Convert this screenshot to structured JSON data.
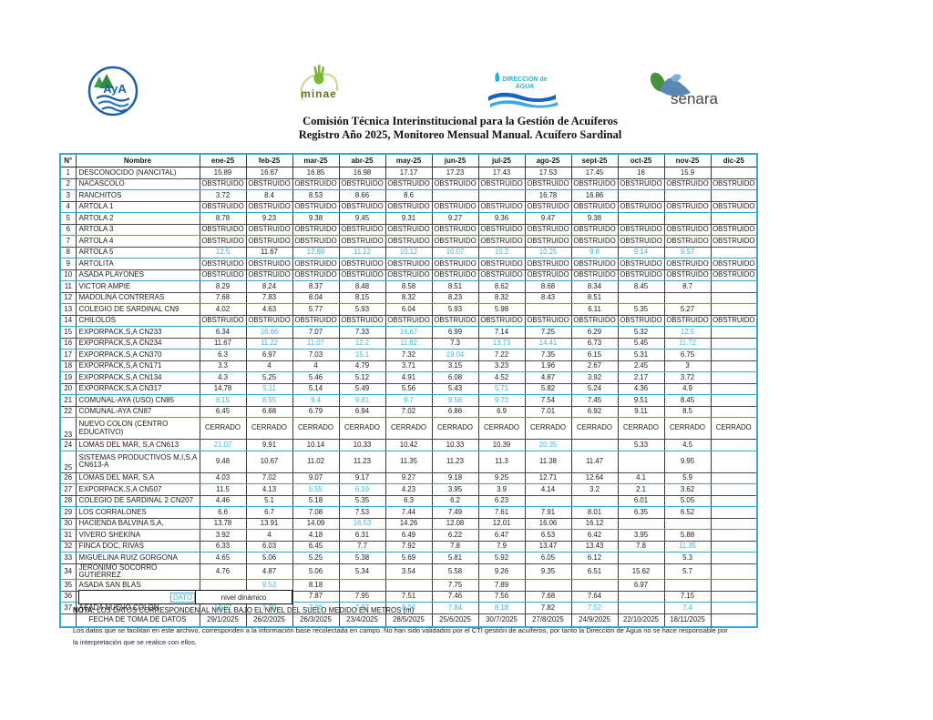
{
  "header": {
    "logos": {
      "aya_label": "AyA",
      "minae_label": "minae",
      "da_line1": "DIRECCIÓN de",
      "da_line2": "AGUA",
      "senara_label": "senara"
    },
    "title_line1": "Comisión Técnica Interinstitucional para la Gestión de Acuíferos",
    "title_line2": "Registro Año 2025, Monitoreo Mensual Manual. Acuífero Sardinal"
  },
  "table": {
    "columns": [
      "N°",
      "Nombre",
      "ene-25",
      "feb-25",
      "mar-25",
      "abr-25",
      "may-25",
      "jun-25",
      "jul-25",
      "ago-25",
      "sept-25",
      "oct-25",
      "nov-25",
      "dic-25"
    ],
    "rows": [
      {
        "n": "1",
        "name": "DESCONOCIDO (NANCITAL)",
        "values": [
          "15.89",
          "16.67",
          "16.85",
          "16.98",
          "17.17",
          "17.23",
          "17.43",
          "17.53",
          "17.45",
          "16",
          "15.9",
          ""
        ]
      },
      {
        "n": "2",
        "name": "NACASCOLO",
        "values": [
          "OBSTRUIDO",
          "OBSTRUIDO",
          "OBSTRUIDO",
          "OBSTRUIDO",
          "OBSTRUIDO",
          "OBSTRUIDO",
          "OBSTRUIDO",
          "OBSTRUIDO",
          "OBSTRUIDO",
          "OBSTRUIDO",
          "OBSTRUIDO",
          "OBSTRUIDO"
        ]
      },
      {
        "n": "3",
        "name": "RANCHITOS",
        "values": [
          "3.72",
          "8.4",
          "8.53",
          "8.66",
          "8.6",
          "",
          "",
          "16.78",
          "16.86",
          "",
          "",
          ""
        ]
      },
      {
        "n": "4",
        "name": "ARTOLA 1",
        "values": [
          "OBSTRUIDO",
          "OBSTRUIDO",
          "OBSTRUIDO",
          "OBSTRUIDO",
          "OBSTRUIDO",
          "OBSTRUIDO",
          "OBSTRUIDO",
          "OBSTRUIDO",
          "OBSTRUIDO",
          "OBSTRUIDO",
          "OBSTRUIDO",
          "OBSTRUIDO"
        ]
      },
      {
        "n": "5",
        "name": "ARTOLA 2",
        "values": [
          "8.78",
          "9.23",
          "9.38",
          "9.45",
          "9.31",
          "9.27",
          "9.36",
          "9.47",
          "9.38",
          "",
          "",
          ""
        ]
      },
      {
        "n": "6",
        "name": "ARTOLA 3",
        "values": [
          "OBSTRUIDO",
          "OBSTRUIDO",
          "OBSTRUIDO",
          "OBSTRUIDO",
          "OBSTRUIDO",
          "OBSTRUIDO",
          "OBSTRUIDO",
          "OBSTRUIDO",
          "OBSTRUIDO",
          "OBSTRUIDO",
          "OBSTRUIDO",
          "OBSTRUIDO"
        ]
      },
      {
        "n": "7",
        "name": "ARTOLA 4",
        "values": [
          "OBSTRUIDO",
          "OBSTRUIDO",
          "OBSTRUIDO",
          "OBSTRUIDO",
          "OBSTRUIDO",
          "OBSTRUIDO",
          "OBSTRUIDO",
          "OBSTRUIDO",
          "OBSTRUIDO",
          "OBSTRUIDO",
          "OBSTRUIDO",
          "OBSTRUIDO"
        ]
      },
      {
        "n": "8",
        "name": "ARTOLA 5",
        "values": [
          "~12.5",
          "11.67",
          "~12.88",
          "~11.12",
          "~10.12",
          "~10.07",
          "~10.2",
          "~10.25",
          "~9.8",
          "~9.14",
          "~9.57",
          ""
        ]
      },
      {
        "n": "9",
        "name": "ARTOLITA",
        "values": [
          "OBSTRUIDO",
          "OBSTRUIDO",
          "OBSTRUIDO",
          "OBSTRUIDO",
          "OBSTRUIDO",
          "OBSTRUIDO",
          "OBSTRUIDO",
          "OBSTRUIDO",
          "OBSTRUIDO",
          "OBSTRUIDO",
          "OBSTRUIDO",
          "OBSTRUIDO"
        ]
      },
      {
        "n": "10",
        "name": "ASADA PLAYONES",
        "values": [
          "OBSTRUIDO",
          "OBSTRUIDO",
          "OBSTRUIDO",
          "OBSTRUIDO",
          "OBSTRUIDO",
          "OBSTRUIDO",
          "OBSTRUIDO",
          "OBSTRUIDO",
          "OBSTRUIDO",
          "OBSTRUIDO",
          "OBSTRUIDO",
          "OBSTRUIDO"
        ]
      },
      {
        "n": "11",
        "name": "VICTOR AMPIE",
        "values": [
          "8.29",
          "8.24",
          "8.37",
          "8.48",
          "8.58",
          "8.51",
          "8.62",
          "8.68",
          "8.34",
          "8.45",
          "8.7",
          ""
        ]
      },
      {
        "n": "12",
        "name": "MADOLINA CONTRERAS",
        "values": [
          "7.68",
          "7.83",
          "8.04",
          "8.15",
          "8.32",
          "8.23",
          "8.32",
          "8.43",
          "8.51",
          "",
          "",
          ""
        ]
      },
      {
        "n": "13",
        "name": "COLEGIO DE SARDINAL CN9",
        "values": [
          "4.02",
          "4.63",
          "5.77",
          "5.93",
          "6.04",
          "5.93",
          "5.98",
          "",
          "6.11",
          "5.35",
          "5.27",
          ""
        ]
      },
      {
        "n": "14",
        "name": "CHILOLOS",
        "values": [
          "OBSTRUIDO",
          "OBSTRUIDO",
          "OBSTRUIDO",
          "OBSTRUIDO",
          "OBSTRUIDO",
          "OBSTRUIDO",
          "OBSTRUIDO",
          "OBSTRUIDO",
          "OBSTRUIDO",
          "OBSTRUIDO",
          "OBSTRUIDO",
          "OBSTRUIDO"
        ]
      },
      {
        "n": "15",
        "name": "EXPORPACK,S,A CN233",
        "values": [
          "6.34",
          "~16.66",
          "7.07",
          "7.33",
          "~16.67",
          "6.99",
          "7.14",
          "7.25",
          "6.29",
          "5.32",
          "~12.5",
          ""
        ]
      },
      {
        "n": "16",
        "name": "EXPORPACK,S,A CN234",
        "values": [
          "11.67",
          "~11.22",
          "~11.07",
          "~12.2",
          "~11.82",
          "7.3",
          "~13.73",
          "~14.41",
          "6.73",
          "5.45",
          "~11.72",
          ""
        ]
      },
      {
        "n": "17",
        "name": "EXPORPACK,S,A CN370",
        "values": [
          "6.3",
          "6.97",
          "7.03",
          "~15.1",
          "7.32",
          "~19.04",
          "7.22",
          "7.35",
          "6.15",
          "5.31",
          "6.75",
          ""
        ]
      },
      {
        "n": "18",
        "name": "EXPORPACK,S,A CN171",
        "values": [
          "3.3",
          "4",
          "4",
          "4.79",
          "3.71",
          "3.15",
          "3.23",
          "1.96",
          "2.67",
          "2.45",
          "3",
          ""
        ]
      },
      {
        "n": "19",
        "name": "EXPORPACK,S,A CN134",
        "values": [
          "4.3",
          "5.25",
          "5.46",
          "5.12",
          "4.91",
          "6.08",
          "4.52",
          "4.87",
          "3.92",
          "2.17",
          "3.72",
          ""
        ]
      },
      {
        "n": "20",
        "name": "EXPORPACK,S,A CN317",
        "values": [
          "14.78",
          "~5.11",
          "5.14",
          "5.49",
          "5.56",
          "5.43",
          "~5.71",
          "5.82",
          "5.24",
          "4.36",
          "4.9",
          ""
        ]
      },
      {
        "n": "21",
        "name": "COMUNAL-AYA (USO) CN85",
        "values": [
          "~8.15",
          "~8.55",
          "~9.4",
          "~9.81",
          "~9.7",
          "~9.56",
          "~9.73",
          "7.54",
          "7.45",
          "9.51",
          "8.45",
          ""
        ]
      },
      {
        "n": "22",
        "name": "COMUNAL-AYA CN87",
        "values": [
          "6.45",
          "6.68",
          "6.79",
          "6.94",
          "7.02",
          "6.86",
          "6.9",
          "7.01",
          "6.92",
          "9.11",
          "8.5",
          ""
        ]
      },
      {
        "n": "23",
        "name": "NUEVO COLON (CENTRO\nEDUCATIVO)",
        "tall": true,
        "values": [
          "CERRADO",
          "CERRADO",
          "CERRADO",
          "CERRADO",
          "CERRADO",
          "CERRADO",
          "CERRADO",
          "CERRADO",
          "CERRADO",
          "CERRADO",
          "CERRADO",
          "CERRADO"
        ]
      },
      {
        "n": "24",
        "name": "LOMAS DEL MAR, S,A CN613",
        "values": [
          "~21.07",
          "9.91",
          "10.14",
          "10.33",
          "10.42",
          "10.33",
          "10.39",
          "~20.35",
          "",
          "5.33",
          "4.5",
          ""
        ]
      },
      {
        "n": "25",
        "name": "SISTEMAS PRODUCTIVOS M,I,S,A\nCN613-A",
        "tall": true,
        "values": [
          "9.48",
          "10.67",
          "11.02",
          "11.23",
          "11.35",
          "11.23",
          "11.3",
          "11.38",
          "11.47",
          "",
          "9.95",
          ""
        ]
      },
      {
        "n": "26",
        "name": "LOMAS DEL MAR, S,A",
        "values": [
          "4.03",
          "7.02",
          "9.07",
          "9.17",
          "9.27",
          "9.18",
          "9.25",
          "12.71",
          "12.64",
          "4.1",
          "5.9",
          ""
        ]
      },
      {
        "n": "27",
        "name": "EXPORPACK,S,A CN507",
        "values": [
          "11.5",
          "4.13",
          "~5.55",
          "~6.19",
          "4.23",
          "3.95",
          "3.9",
          "4.14",
          "3.2",
          "2.1",
          "3.62",
          ""
        ]
      },
      {
        "n": "28",
        "name": "COLEGIO DE SARDINAL 2 CN207",
        "values": [
          "4.46",
          "5.1",
          "5.18",
          "5.35",
          "6.3",
          "6.2",
          "6.23",
          "",
          "",
          "6.01",
          "5.05",
          ""
        ]
      },
      {
        "n": "29",
        "name": "LOS CORRALONES",
        "values": [
          "6.6",
          "6.7",
          "7.08",
          "7.53",
          "7.44",
          "7.49",
          "7.61",
          "7.91",
          "8.01",
          "6.35",
          "6.52",
          ""
        ]
      },
      {
        "n": "30",
        "name": "HACIENDA BALVINA S,A,",
        "values": [
          "13.78",
          "13.91",
          "14.09",
          "~16.53",
          "14.26",
          "12.08",
          "12.01",
          "16.06",
          "16.12",
          "",
          "",
          ""
        ]
      },
      {
        "n": "31",
        "name": "VIVERO SHEKÍNA",
        "values": [
          "3.92",
          "4",
          "4.18",
          "6.31",
          "6.49",
          "6.22",
          "6.47",
          "6.53",
          "6.42",
          "3.95",
          "5.88",
          ""
        ]
      },
      {
        "n": "32",
        "name": "FINCA DOC, RIVAS",
        "values": [
          "6.33",
          "6.03",
          "6.45",
          "7.7",
          "7.92",
          "7.8",
          "7.9",
          "13.47",
          "13.43",
          "7.8",
          "~11.35",
          ""
        ]
      },
      {
        "n": "33",
        "name": "MIGUELINA RUIZ GORGONA",
        "values": [
          "4.65",
          "5.06",
          "5.25",
          "5.38",
          "5.69",
          "5.81",
          "5.92",
          "6.05",
          "6.12",
          "",
          "5.3",
          ""
        ]
      },
      {
        "n": "34",
        "name": "JERÓNIMO SOCORRO GUTIÉRREZ",
        "values": [
          "4.76",
          "4.87",
          "5.06",
          "5.34",
          "3.54",
          "5.58",
          "9.26",
          "9.35",
          "6.51",
          "15.62",
          "5.7",
          ""
        ]
      },
      {
        "n": "35",
        "name": "ASADA SAN BLAS",
        "values": [
          "",
          "~9.53",
          "8.18",
          "",
          "",
          "7.75",
          "7.89",
          "",
          "",
          "6.97",
          "",
          ""
        ]
      },
      {
        "n": "36",
        "name": "SAN BLAS-PABLO GUTIÉRREZ",
        "values": [
          "6.49",
          "6.58",
          "7.87",
          "7.95",
          "7.51",
          "7.46",
          "7.56",
          "7.68",
          "7.64",
          "",
          "7.15",
          ""
        ]
      },
      {
        "n": "37",
        "name": "ASADA NUEVO COLON",
        "values": [
          "~18.02",
          "~7.39",
          "~7.38",
          "~7.87",
          "~8.04",
          "~7.84",
          "~8.18",
          "7.82",
          "~7.52",
          "",
          "~7.4",
          ""
        ]
      }
    ],
    "footer_label": "FECHA DE TOMA DE DATOS",
    "footer_dates": [
      "29/1/2025",
      "26/2/2025",
      "26/3/2025",
      "23/4/2025",
      "28/5/2025",
      "25/6/2025",
      "30/7/2025",
      "27/8/2025",
      "24/9/2025",
      "22/10/2025",
      "18/11/2025",
      ""
    ]
  },
  "legend": {
    "dato": "DATO",
    "meaning": "nivel dinámico"
  },
  "nota_label": "NOTA:",
  "nota_text": " LOS DATOS CORRESPONDEN AL NIVEL BAJO EL NIVEL DEL SUELO MEDIDO EN METROS (m)",
  "disclaimer_line1": "Los datos que se facilitan en este archivo, corresponden a la información base recolectada en campo. No han sido validados por el CTI gestión de acuíferos, por tanto la Dirección de Agua no se hace responsable por",
  "disclaimer_line2": "la interpretación que se realice con ellos.",
  "accent_colors": {
    "cyan_text": "#3BB6DC",
    "cyan_border": "#35A8D0"
  }
}
